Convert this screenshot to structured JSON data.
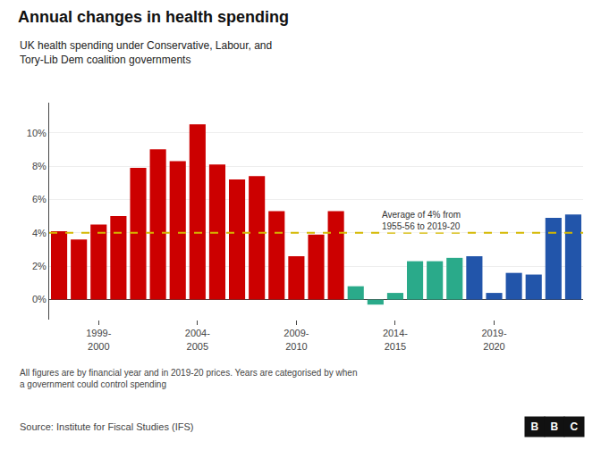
{
  "chart_data": {
    "type": "bar",
    "title": "Annual changes in health spending",
    "subtitle": "UK health spending under Conservative, Labour, and\nTory-Lib Dem coalition governments",
    "categories": [
      null,
      null,
      "1999-\n2000",
      null,
      null,
      null,
      null,
      "2004-\n2005",
      null,
      null,
      null,
      null,
      "2009-\n2010",
      null,
      null,
      null,
      null,
      "2014-\n2015",
      null,
      null,
      null,
      null,
      "2019-\n2020",
      null,
      null,
      null,
      null
    ],
    "values": [
      4.1,
      3.6,
      4.5,
      5.0,
      7.9,
      9.0,
      8.3,
      10.5,
      8.1,
      7.2,
      7.4,
      5.3,
      2.6,
      3.9,
      5.3,
      0.8,
      -0.3,
      0.4,
      2.3,
      2.3,
      2.5,
      2.6,
      0.4,
      1.6,
      1.5,
      4.9,
      5.1
    ],
    "colors": [
      "#cc0000",
      "#cc0000",
      "#cc0000",
      "#cc0000",
      "#cc0000",
      "#cc0000",
      "#cc0000",
      "#cc0000",
      "#cc0000",
      "#cc0000",
      "#cc0000",
      "#cc0000",
      "#cc0000",
      "#cc0000",
      "#cc0000",
      "#2aaa8a",
      "#2aaa8a",
      "#2aaa8a",
      "#2aaa8a",
      "#2aaa8a",
      "#2aaa8a",
      "#2255aa",
      "#2255aa",
      "#2255aa",
      "#2255aa",
      "#2255aa",
      "#2255aa"
    ],
    "ylim": [
      -1.2,
      11.8
    ],
    "yticks": [
      {
        "value": 0,
        "label": "0%"
      },
      {
        "value": 2,
        "label": "2%"
      },
      {
        "value": 4,
        "label": "4%"
      },
      {
        "value": 6,
        "label": "6%"
      },
      {
        "value": 8,
        "label": "8%"
      },
      {
        "value": 10,
        "label": "10%"
      }
    ],
    "grid": true,
    "annotations": [
      {
        "text": "Average of 4% from\n1955-56 to 2019-20",
        "y": 4.0,
        "color": "#d4b800"
      }
    ],
    "footnote": "All figures are by financial year and in 2019-20 prices. Years are categorised by when\na government could control spending",
    "source": "Source: Institute for Fiscal Studies (IFS)",
    "logo": "BBC"
  }
}
